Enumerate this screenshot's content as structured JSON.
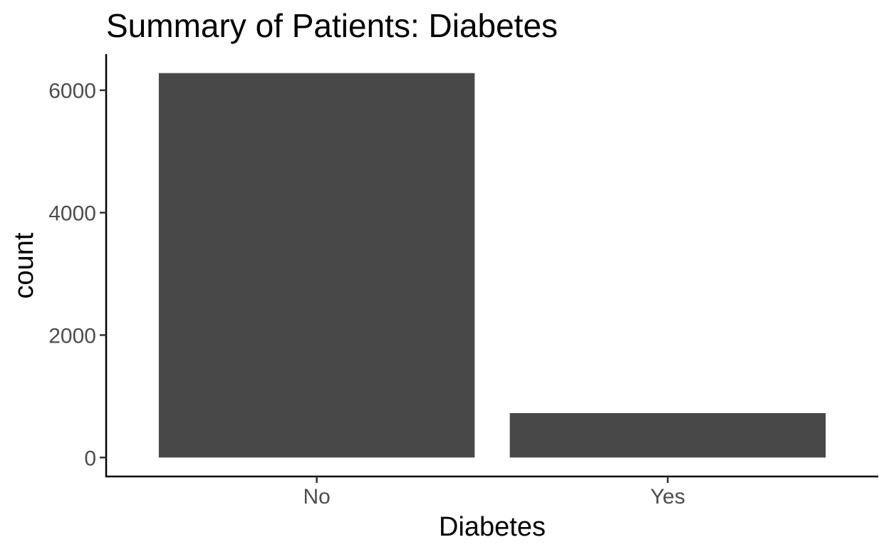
{
  "chart_data": {
    "type": "bar",
    "title": "Summary of Patients: Diabetes",
    "xlabel": "Diabetes",
    "ylabel": "count",
    "categories": [
      "No",
      "Yes"
    ],
    "values": [
      6280,
      725
    ],
    "ylim": [
      -310,
      6590
    ],
    "yticks": [
      0,
      2000,
      4000,
      6000
    ],
    "yticklabels": [
      "0",
      "2000",
      "4000",
      "6000"
    ],
    "grid": false,
    "legend": "none",
    "bar_color": "#484848"
  }
}
